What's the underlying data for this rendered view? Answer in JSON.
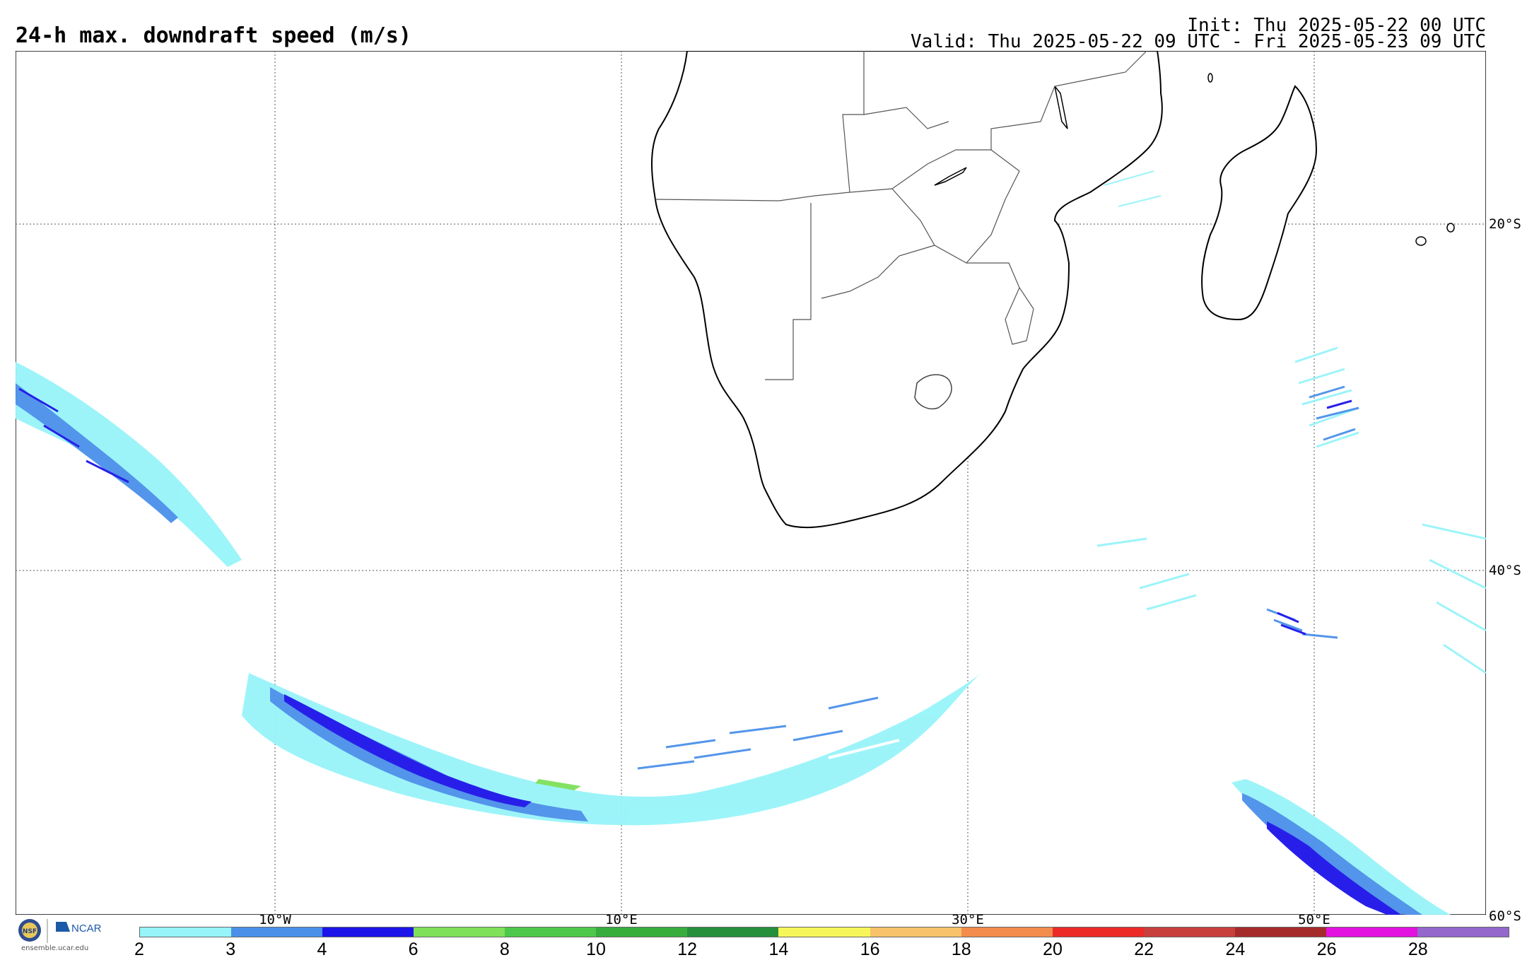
{
  "header": {
    "title": "24-h max. downdraft speed (m/s)",
    "init": "Init: Thu 2025-05-22 00 UTC",
    "valid": "Valid: Thu 2025-05-22 09 UTC - Fri 2025-05-23 09 UTC"
  },
  "map": {
    "latitude_labels": [
      "20°S",
      "40°S",
      "60°S"
    ],
    "longitude_labels": [
      "10°W",
      "10°E",
      "30°E",
      "50°E"
    ],
    "land_color": "#ffffff",
    "ocean_color": "#ffffff",
    "coastline_color": "#000000",
    "border_color": "#444444"
  },
  "logo": {
    "org_nsf": "NSF",
    "org_ncar": "NCAR",
    "url": "ensemble.ucar.edu"
  },
  "colorbar": {
    "ticks": [
      "2",
      "3",
      "4",
      "6",
      "8",
      "10",
      "12",
      "14",
      "16",
      "18",
      "20",
      "22",
      "24",
      "26",
      "28"
    ],
    "colors": [
      "#97f4f9",
      "#4a90e9",
      "#1c14e8",
      "#7fe05a",
      "#4dc84a",
      "#37ad3e",
      "#268f3b",
      "#f6f65b",
      "#f8c26a",
      "#f28b4c",
      "#ec2a26",
      "#c7403c",
      "#a52a2a",
      "#e212df",
      "#9467cd"
    ]
  }
}
